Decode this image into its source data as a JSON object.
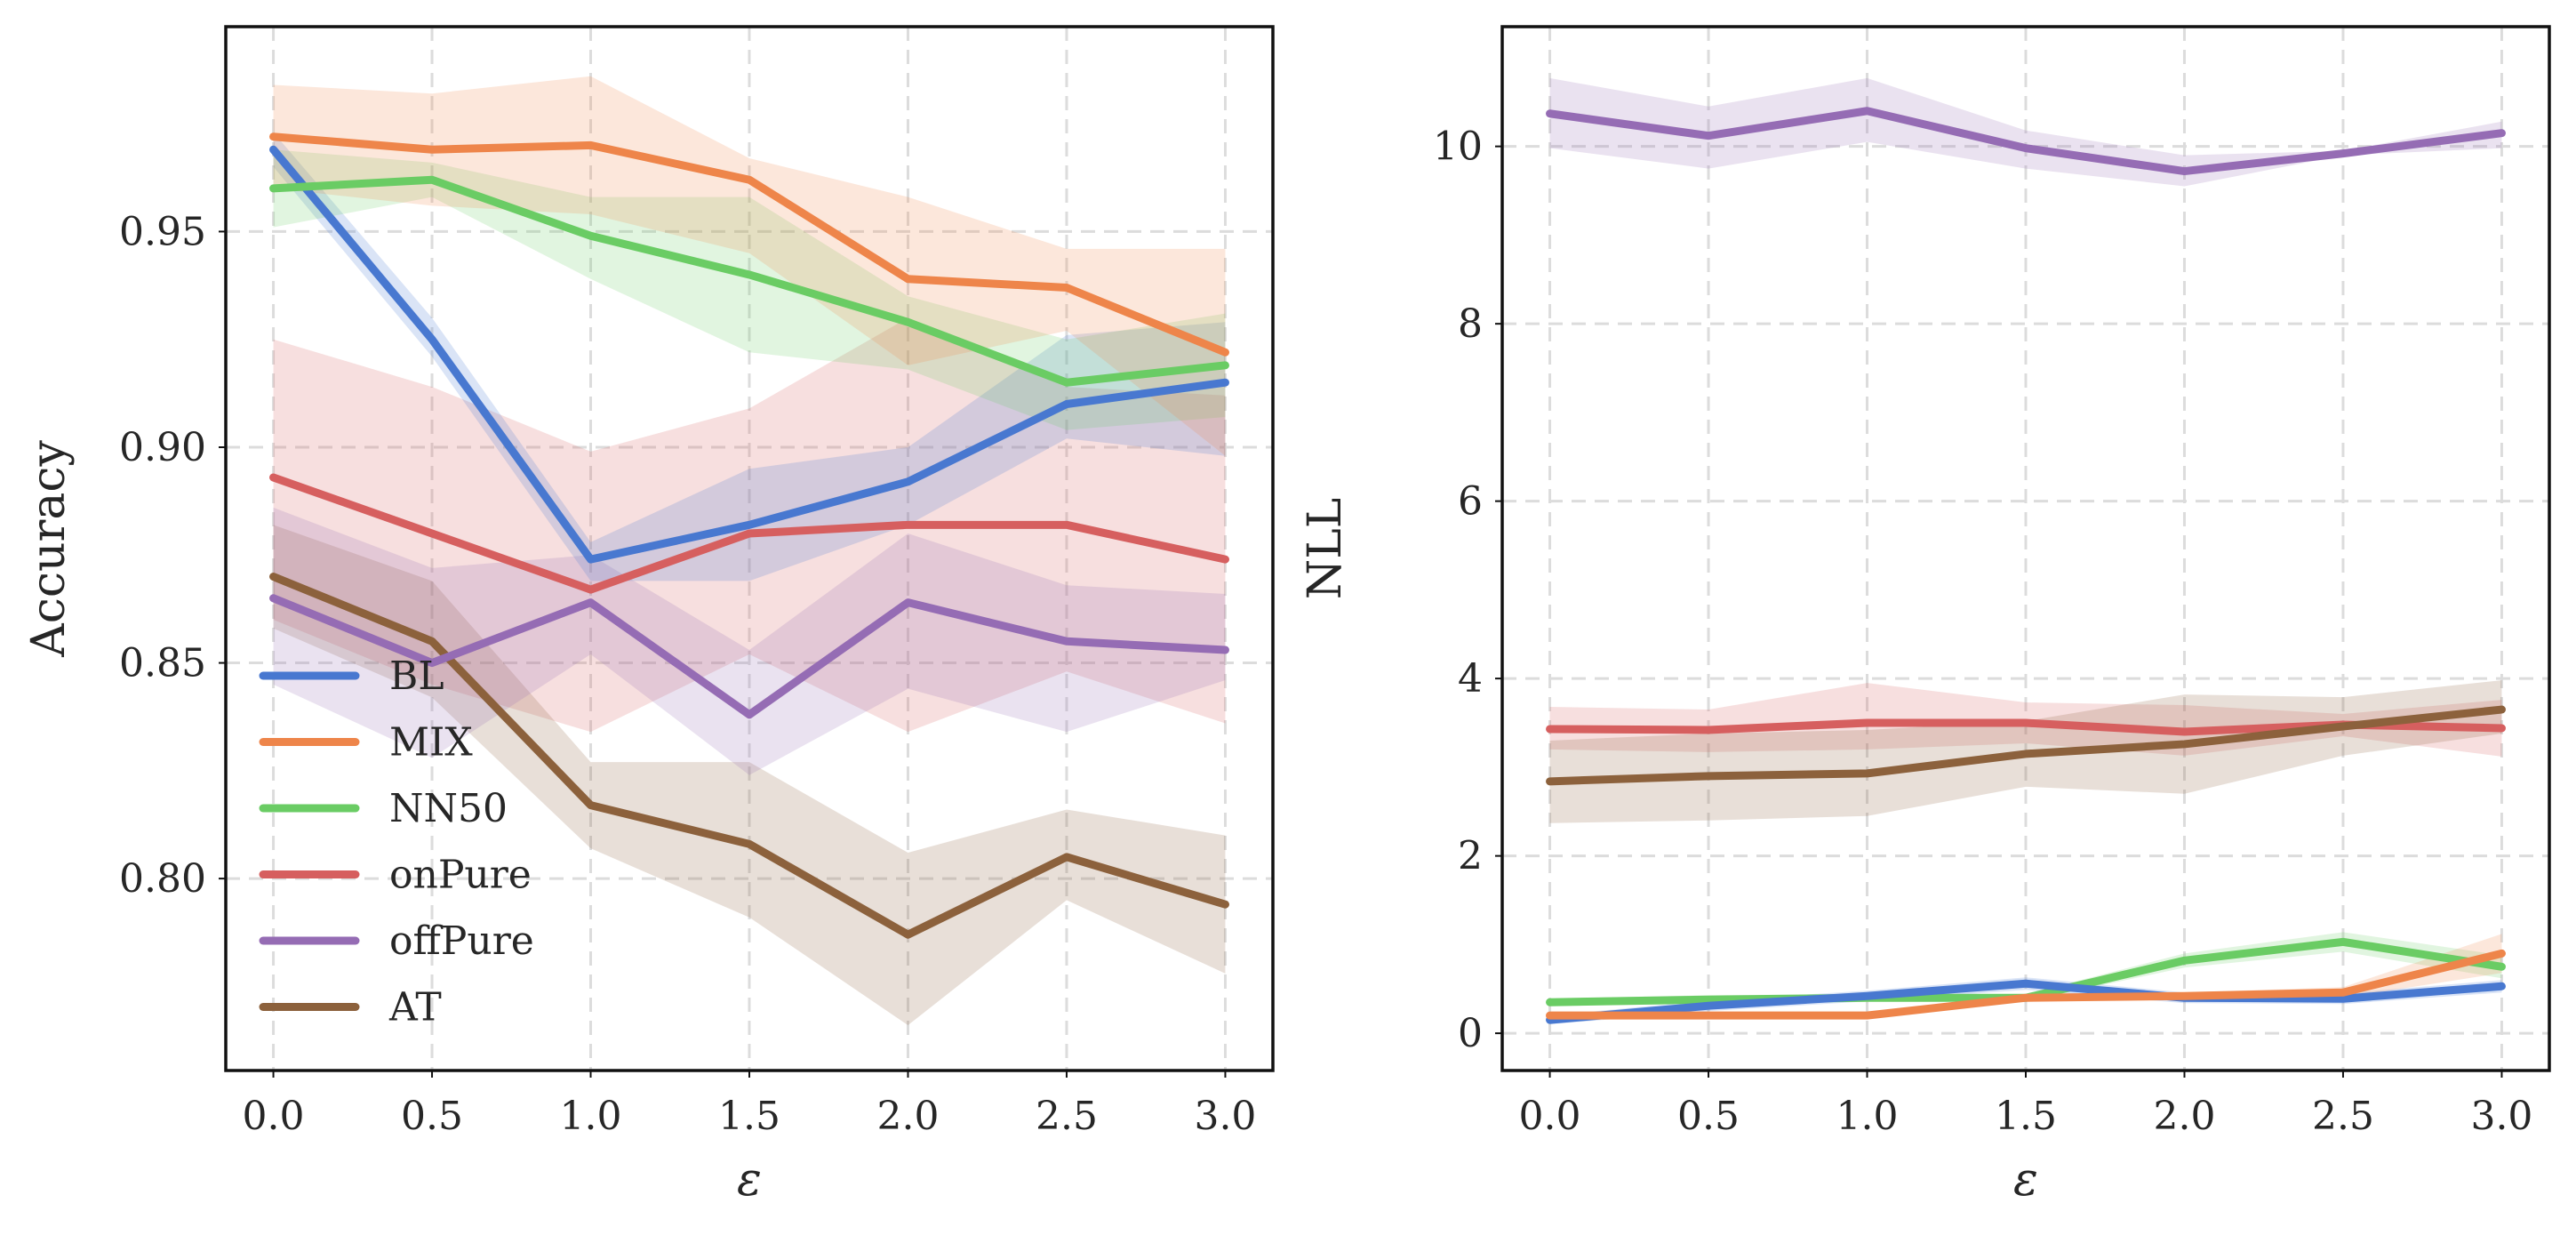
{
  "colors": {
    "BL": "#4878d0",
    "MIX": "#ee854a",
    "NN50": "#6acc64",
    "onPure": "#d65f5f",
    "offPure": "#956cb4",
    "AT": "#8c613c"
  },
  "chart_data": [
    {
      "type": "line",
      "id": "left",
      "xlabel": "ε",
      "ylabel": "Accuracy",
      "xlim": [
        -0.15,
        3.15
      ],
      "ylim": [
        0.7555,
        0.9975
      ],
      "x": [
        0.0,
        0.5,
        1.0,
        1.5,
        2.0,
        2.5,
        3.0
      ],
      "xticks": [
        "0.0",
        "0.5",
        "1.0",
        "1.5",
        "2.0",
        "2.5",
        "3.0"
      ],
      "yticks": [
        {
          "value": 0.8,
          "label": "0.80"
        },
        {
          "value": 0.85,
          "label": "0.85"
        },
        {
          "value": 0.9,
          "label": "0.90"
        },
        {
          "value": 0.95,
          "label": "0.95"
        }
      ],
      "grid": true,
      "legend_position": "lower-left",
      "series": [
        {
          "name": "onPure",
          "values": [
            0.893,
            0.88,
            0.867,
            0.88,
            0.882,
            0.882,
            0.874
          ],
          "lower": [
            0.86,
            0.845,
            0.834,
            0.852,
            0.834,
            0.848,
            0.836
          ],
          "upper": [
            0.925,
            0.914,
            0.899,
            0.909,
            0.93,
            0.914,
            0.912
          ]
        },
        {
          "name": "AT",
          "values": [
            0.87,
            0.855,
            0.817,
            0.808,
            0.787,
            0.805,
            0.794
          ],
          "lower": [
            0.858,
            0.842,
            0.807,
            0.791,
            0.766,
            0.795,
            0.778
          ],
          "upper": [
            0.882,
            0.869,
            0.827,
            0.827,
            0.806,
            0.816,
            0.81
          ]
        },
        {
          "name": "offPure",
          "values": [
            0.865,
            0.85,
            0.864,
            0.838,
            0.864,
            0.855,
            0.853
          ],
          "lower": [
            0.845,
            0.828,
            0.852,
            0.824,
            0.844,
            0.834,
            0.846
          ],
          "upper": [
            0.886,
            0.872,
            0.875,
            0.853,
            0.88,
            0.868,
            0.866
          ]
        },
        {
          "name": "BL",
          "values": [
            0.969,
            0.925,
            0.874,
            0.882,
            0.892,
            0.91,
            0.915
          ],
          "lower": [
            0.965,
            0.921,
            0.869,
            0.869,
            0.882,
            0.902,
            0.898
          ],
          "upper": [
            0.973,
            0.93,
            0.878,
            0.895,
            0.9,
            0.926,
            0.929
          ]
        },
        {
          "name": "NN50",
          "values": [
            0.96,
            0.962,
            0.949,
            0.94,
            0.929,
            0.915,
            0.919
          ],
          "lower": [
            0.951,
            0.958,
            0.939,
            0.922,
            0.918,
            0.904,
            0.907
          ],
          "upper": [
            0.969,
            0.966,
            0.958,
            0.958,
            0.935,
            0.925,
            0.931
          ]
        },
        {
          "name": "MIX",
          "values": [
            0.972,
            0.969,
            0.97,
            0.962,
            0.939,
            0.937,
            0.922
          ],
          "lower": [
            0.96,
            0.956,
            0.954,
            0.945,
            0.919,
            0.927,
            0.898
          ],
          "upper": [
            0.984,
            0.982,
            0.986,
            0.967,
            0.958,
            0.946,
            0.946
          ]
        }
      ],
      "legend": [
        "BL",
        "MIX",
        "NN50",
        "onPure",
        "offPure",
        "AT"
      ]
    },
    {
      "type": "line",
      "id": "right",
      "xlabel": "ε",
      "ylabel": "NLL",
      "xlim": [
        -0.15,
        3.15
      ],
      "ylim": [
        -0.42,
        11.35
      ],
      "x": [
        0.0,
        0.5,
        1.0,
        1.5,
        2.0,
        2.5,
        3.0
      ],
      "xticks": [
        "0.0",
        "0.5",
        "1.0",
        "1.5",
        "2.0",
        "2.5",
        "3.0"
      ],
      "yticks": [
        {
          "value": 0,
          "label": "0"
        },
        {
          "value": 2,
          "label": "2"
        },
        {
          "value": 4,
          "label": "4"
        },
        {
          "value": 6,
          "label": "6"
        },
        {
          "value": 8,
          "label": "8"
        },
        {
          "value": 10,
          "label": "10"
        }
      ],
      "grid": true,
      "series": [
        {
          "name": "offPure",
          "values": [
            10.37,
            10.12,
            10.4,
            9.98,
            9.72,
            9.92,
            10.15
          ],
          "lower": [
            9.98,
            9.75,
            10.05,
            9.75,
            9.55,
            9.9,
            9.98
          ],
          "upper": [
            10.77,
            10.45,
            10.77,
            10.18,
            9.9,
            9.95,
            10.28
          ]
        },
        {
          "name": "onPure",
          "values": [
            3.43,
            3.42,
            3.5,
            3.5,
            3.4,
            3.48,
            3.44
          ],
          "lower": [
            3.2,
            3.17,
            3.2,
            3.27,
            3.13,
            3.35,
            3.12
          ],
          "upper": [
            3.68,
            3.65,
            3.95,
            3.73,
            3.7,
            3.6,
            3.76
          ]
        },
        {
          "name": "AT",
          "values": [
            2.84,
            2.9,
            2.93,
            3.15,
            3.26,
            3.46,
            3.65
          ],
          "lower": [
            2.37,
            2.4,
            2.45,
            2.78,
            2.7,
            3.13,
            3.38
          ],
          "upper": [
            3.3,
            3.38,
            3.42,
            3.52,
            3.82,
            3.79,
            3.98
          ]
        },
        {
          "name": "NN50",
          "values": [
            0.35,
            0.38,
            0.4,
            0.4,
            0.82,
            1.03,
            0.75
          ],
          "lower": [
            0.31,
            0.33,
            0.36,
            0.36,
            0.74,
            0.92,
            0.62
          ],
          "upper": [
            0.39,
            0.43,
            0.44,
            0.44,
            0.9,
            1.14,
            0.88
          ]
        },
        {
          "name": "BL",
          "values": [
            0.15,
            0.31,
            0.42,
            0.56,
            0.4,
            0.39,
            0.53
          ],
          "lower": [
            0.1,
            0.25,
            0.36,
            0.49,
            0.34,
            0.33,
            0.46
          ],
          "upper": [
            0.2,
            0.37,
            0.48,
            0.63,
            0.46,
            0.45,
            0.6
          ]
        },
        {
          "name": "MIX",
          "values": [
            0.2,
            0.2,
            0.2,
            0.4,
            0.42,
            0.46,
            0.9
          ],
          "lower": [
            0.17,
            0.17,
            0.17,
            0.36,
            0.38,
            0.4,
            0.68
          ],
          "upper": [
            0.23,
            0.23,
            0.23,
            0.44,
            0.46,
            0.52,
            1.12
          ]
        }
      ]
    }
  ]
}
